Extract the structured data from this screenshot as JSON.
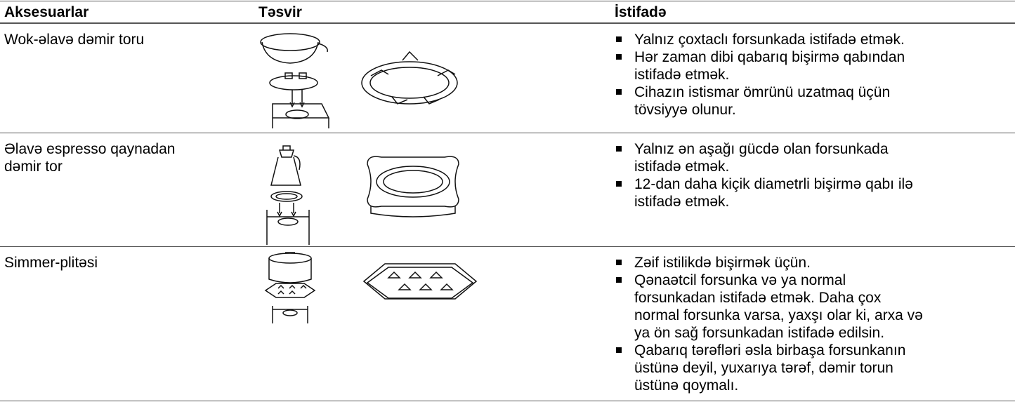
{
  "header": {
    "columns": [
      "Aksesuarlar",
      "Təsvir",
      "İstifadə"
    ]
  },
  "rows": [
    {
      "name": "Wok-əlavə dəmir toru",
      "usage": [
        "Yalnız çoxtaclı forsunkada istifadə etmək.",
        "Hər zaman dibi qabarıq bişirmə qabından istifadə etmək.",
        "Cihazın istismar ömrünü uzatmaq üçün tövsiyyə olunur."
      ]
    },
    {
      "name": "Əlavə espresso qaynadan dəmir tor",
      "usage": [
        "Yalnız ən aşağı gücdə olan forsunkada istifadə etmək.",
        "12-dan daha kiçik diametrli bişirmə qabı ilə istifadə etmək."
      ]
    },
    {
      "name": "Simmer-plitəsi",
      "usage": [
        "Zəif istilikdə bişirmək üçün.",
        "Qənaətcil forsunka və ya normal forsunkadan istifadə etmək. Daha çox normal forsunka varsa, yaxşı olar ki, arxa və ya ön sağ forsunkadan istifadə edilsin.",
        "Qabarıq tərəfləri əsla birbaşa forsunkanın üstünə deyil, yuxarıya tərəf, dəmir torun üstünə qoymalı."
      ]
    }
  ]
}
